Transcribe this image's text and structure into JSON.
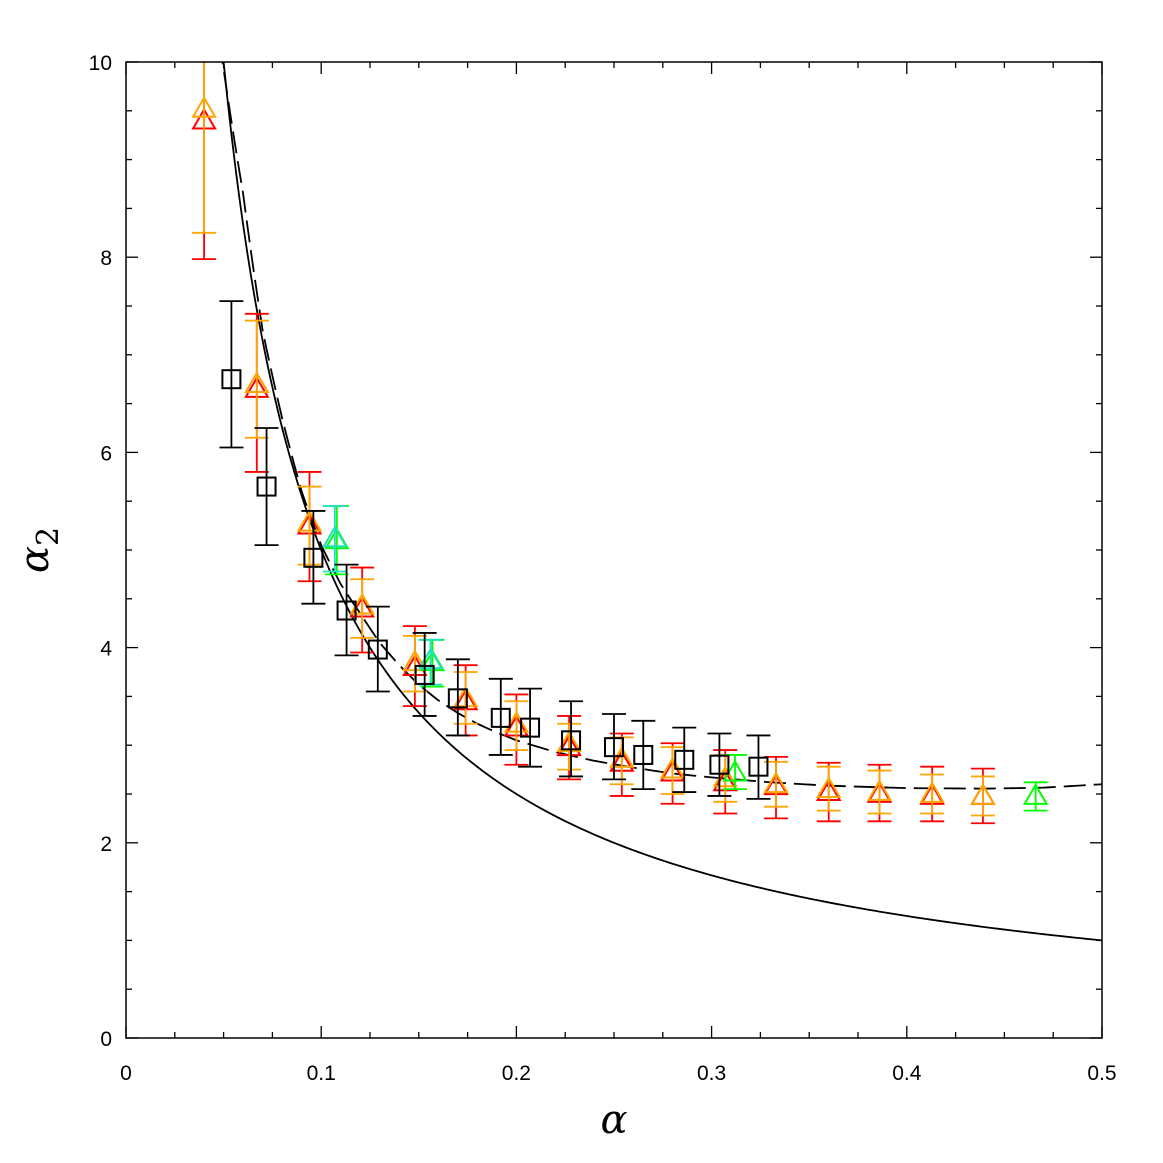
{
  "chart_data": {
    "type": "scatter",
    "title": "",
    "xlabel": "α",
    "ylabel": "α",
    "ylabel_subscript": "2",
    "xlim": [
      0,
      0.5
    ],
    "ylim": [
      0,
      10
    ],
    "xticks": [
      0,
      0.1,
      0.2,
      0.3,
      0.4,
      0.5
    ],
    "xtick_labels": [
      "0",
      "0.1",
      "0.2",
      "0.3",
      "0.4",
      "0.5"
    ],
    "yticks": [
      0,
      2,
      4,
      6,
      8,
      10
    ],
    "ytick_labels": [
      "0",
      "2",
      "4",
      "6",
      "8",
      "10"
    ],
    "grid": false,
    "legend": "none",
    "curves": [
      {
        "style": "solid",
        "color": "#000000",
        "formula": "0.5/x"
      },
      {
        "style": "dashed",
        "color": "#000000",
        "formula": "0.5/x + 2.55*exp(-(x/0.25)^2)... (fit through points)"
      }
    ],
    "series": [
      {
        "marker": "triangle",
        "color": "#ff0000",
        "points": [
          {
            "x": 0.04,
            "y": 9.4,
            "lo": 7.98,
            "hi": 10.0
          },
          {
            "x": 0.067,
            "y": 6.65,
            "lo": 5.8,
            "hi": 7.42
          },
          {
            "x": 0.094,
            "y": 5.25,
            "lo": 4.68,
            "hi": 5.8
          },
          {
            "x": 0.121,
            "y": 4.4,
            "lo": 3.95,
            "hi": 4.82
          },
          {
            "x": 0.148,
            "y": 3.8,
            "lo": 3.4,
            "hi": 4.22
          },
          {
            "x": 0.174,
            "y": 3.45,
            "lo": 3.1,
            "hi": 3.82
          },
          {
            "x": 0.2,
            "y": 3.18,
            "lo": 2.8,
            "hi": 3.52
          },
          {
            "x": 0.227,
            "y": 2.98,
            "lo": 2.65,
            "hi": 3.3
          },
          {
            "x": 0.254,
            "y": 2.82,
            "lo": 2.48,
            "hi": 3.12
          },
          {
            "x": 0.28,
            "y": 2.72,
            "lo": 2.4,
            "hi": 3.02
          },
          {
            "x": 0.307,
            "y": 2.62,
            "lo": 2.3,
            "hi": 2.95
          },
          {
            "x": 0.333,
            "y": 2.58,
            "lo": 2.25,
            "hi": 2.88
          },
          {
            "x": 0.36,
            "y": 2.52,
            "lo": 2.22,
            "hi": 2.82
          },
          {
            "x": 0.386,
            "y": 2.5,
            "lo": 2.22,
            "hi": 2.8
          },
          {
            "x": 0.413,
            "y": 2.48,
            "lo": 2.22,
            "hi": 2.78
          },
          {
            "x": 0.439,
            "y": 2.48,
            "lo": 2.2,
            "hi": 2.76
          }
        ]
      },
      {
        "marker": "triangle",
        "color": "#ffa500",
        "points": [
          {
            "x": 0.04,
            "y": 9.52,
            "lo": 8.25,
            "hi": 10.0
          },
          {
            "x": 0.067,
            "y": 6.7,
            "lo": 6.15,
            "hi": 7.35
          },
          {
            "x": 0.094,
            "y": 5.28,
            "lo": 4.85,
            "hi": 5.65
          },
          {
            "x": 0.121,
            "y": 4.43,
            "lo": 4.1,
            "hi": 4.7
          },
          {
            "x": 0.148,
            "y": 3.85,
            "lo": 3.55,
            "hi": 4.12
          },
          {
            "x": 0.174,
            "y": 3.48,
            "lo": 3.22,
            "hi": 3.75
          },
          {
            "x": 0.2,
            "y": 3.22,
            "lo": 2.95,
            "hi": 3.45
          },
          {
            "x": 0.227,
            "y": 3.02,
            "lo": 2.75,
            "hi": 3.22
          },
          {
            "x": 0.254,
            "y": 2.86,
            "lo": 2.6,
            "hi": 3.08
          },
          {
            "x": 0.28,
            "y": 2.75,
            "lo": 2.5,
            "hi": 2.98
          },
          {
            "x": 0.307,
            "y": 2.66,
            "lo": 2.42,
            "hi": 2.9
          },
          {
            "x": 0.333,
            "y": 2.6,
            "lo": 2.37,
            "hi": 2.83
          },
          {
            "x": 0.36,
            "y": 2.55,
            "lo": 2.33,
            "hi": 2.78
          },
          {
            "x": 0.386,
            "y": 2.52,
            "lo": 2.3,
            "hi": 2.74
          },
          {
            "x": 0.413,
            "y": 2.5,
            "lo": 2.3,
            "hi": 2.7
          },
          {
            "x": 0.439,
            "y": 2.48,
            "lo": 2.28,
            "hi": 2.68
          }
        ]
      },
      {
        "marker": "triangle",
        "color": "#00ff00",
        "points": [
          {
            "x": 0.108,
            "y": 5.1,
            "lo": 4.75,
            "hi": 5.45
          },
          {
            "x": 0.157,
            "y": 3.85,
            "lo": 3.6,
            "hi": 4.08
          },
          {
            "x": 0.312,
            "y": 2.72,
            "lo": 2.55,
            "hi": 2.9
          },
          {
            "x": 0.466,
            "y": 2.48,
            "lo": 2.33,
            "hi": 2.62
          }
        ]
      },
      {
        "marker": "triangle",
        "color": "#20e0c0",
        "points": [
          {
            "x": 0.107,
            "y": 5.12,
            "lo": 4.78,
            "hi": 5.45
          },
          {
            "x": 0.156,
            "y": 3.87,
            "lo": 3.62,
            "hi": 4.08
          }
        ]
      },
      {
        "marker": "square",
        "color": "#000000",
        "points": [
          {
            "x": 0.054,
            "y": 6.75,
            "lo": 6.05,
            "hi": 7.55
          },
          {
            "x": 0.072,
            "y": 5.65,
            "lo": 5.05,
            "hi": 6.25
          },
          {
            "x": 0.096,
            "y": 4.92,
            "lo": 4.45,
            "hi": 5.4
          },
          {
            "x": 0.113,
            "y": 4.38,
            "lo": 3.92,
            "hi": 4.85
          },
          {
            "x": 0.129,
            "y": 3.98,
            "lo": 3.55,
            "hi": 4.42
          },
          {
            "x": 0.153,
            "y": 3.72,
            "lo": 3.3,
            "hi": 4.15
          },
          {
            "x": 0.17,
            "y": 3.48,
            "lo": 3.1,
            "hi": 3.88
          },
          {
            "x": 0.192,
            "y": 3.28,
            "lo": 2.9,
            "hi": 3.68
          },
          {
            "x": 0.207,
            "y": 3.18,
            "lo": 2.78,
            "hi": 3.58
          },
          {
            "x": 0.228,
            "y": 3.05,
            "lo": 2.68,
            "hi": 3.45
          },
          {
            "x": 0.25,
            "y": 2.98,
            "lo": 2.65,
            "hi": 3.32
          },
          {
            "x": 0.265,
            "y": 2.9,
            "lo": 2.55,
            "hi": 3.25
          },
          {
            "x": 0.286,
            "y": 2.85,
            "lo": 2.52,
            "hi": 3.18
          },
          {
            "x": 0.304,
            "y": 2.8,
            "lo": 2.48,
            "hi": 3.12
          },
          {
            "x": 0.324,
            "y": 2.78,
            "lo": 2.45,
            "hi": 3.1
          }
        ]
      }
    ]
  }
}
